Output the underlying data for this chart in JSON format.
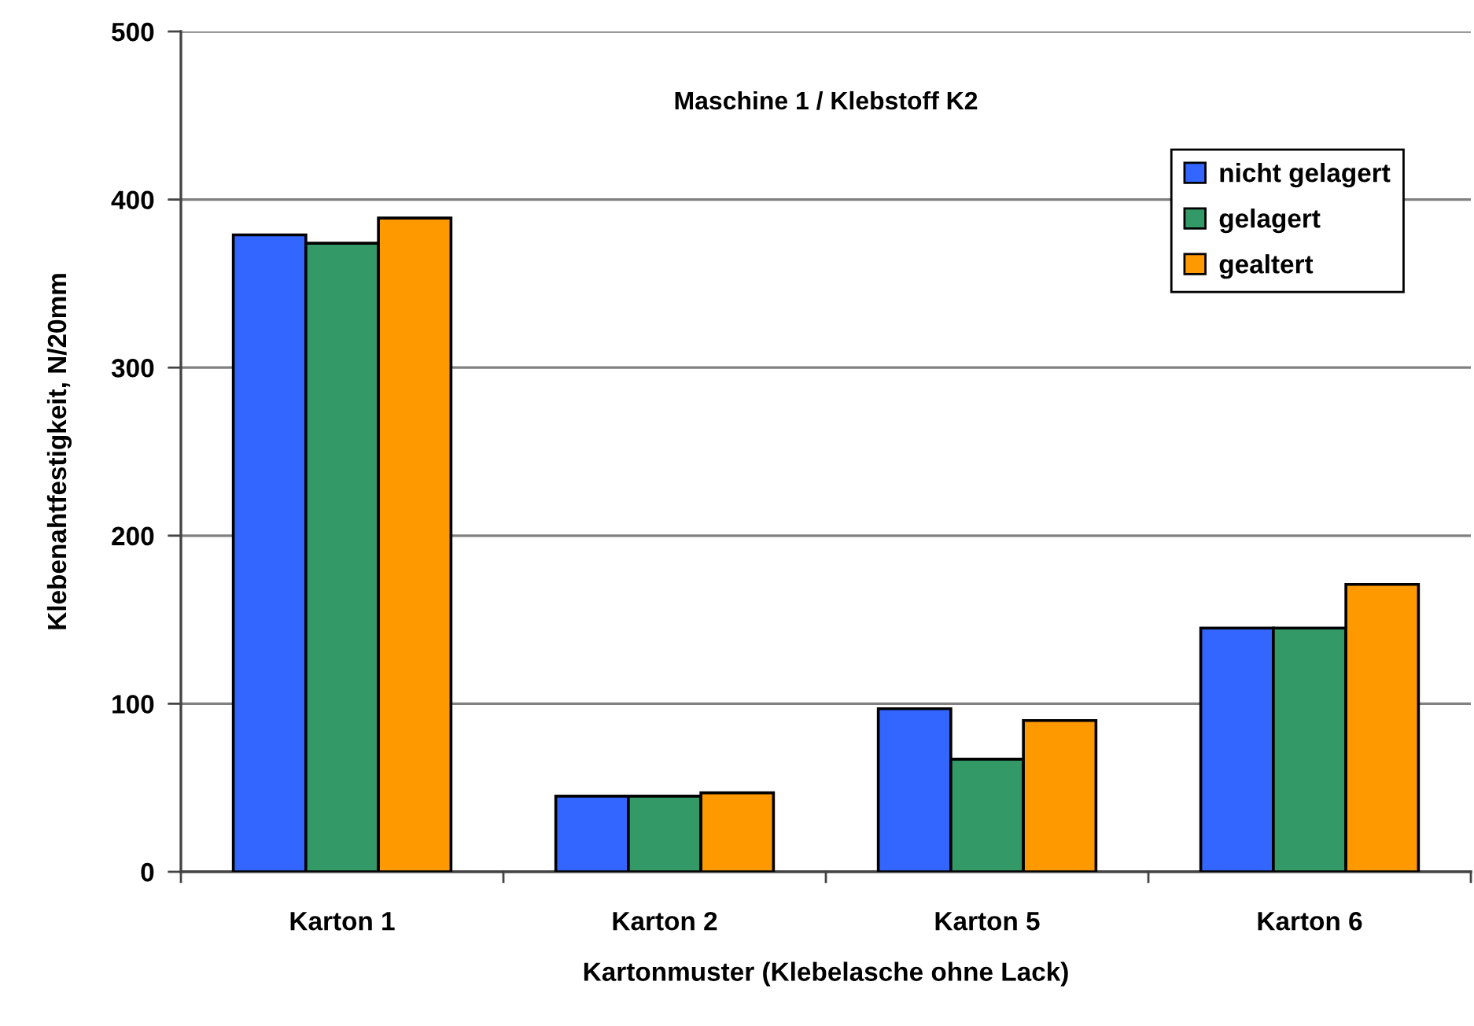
{
  "chart_data": {
    "type": "bar",
    "title": "Maschine 1 / Klebstoff K2",
    "xlabel": "Kartonmuster (Klebelasche ohne Lack)",
    "ylabel": "Klebenahtfestigkeit, N/20mm",
    "categories": [
      "Karton 1",
      "Karton 2",
      "Karton 5",
      "Karton 6"
    ],
    "series": [
      {
        "name": "nicht gelagert",
        "color": "#3366ff",
        "values": [
          379,
          45,
          97,
          145
        ]
      },
      {
        "name": "gelagert",
        "color": "#339966",
        "values": [
          374,
          45,
          67,
          145
        ]
      },
      {
        "name": "gealtert",
        "color": "#ff9900",
        "values": [
          389,
          47,
          90,
          171
        ]
      }
    ],
    "ylim": [
      0,
      500
    ],
    "yticks": [
      0,
      100,
      200,
      300,
      400,
      500
    ],
    "grid": "y",
    "legend": "top right"
  }
}
